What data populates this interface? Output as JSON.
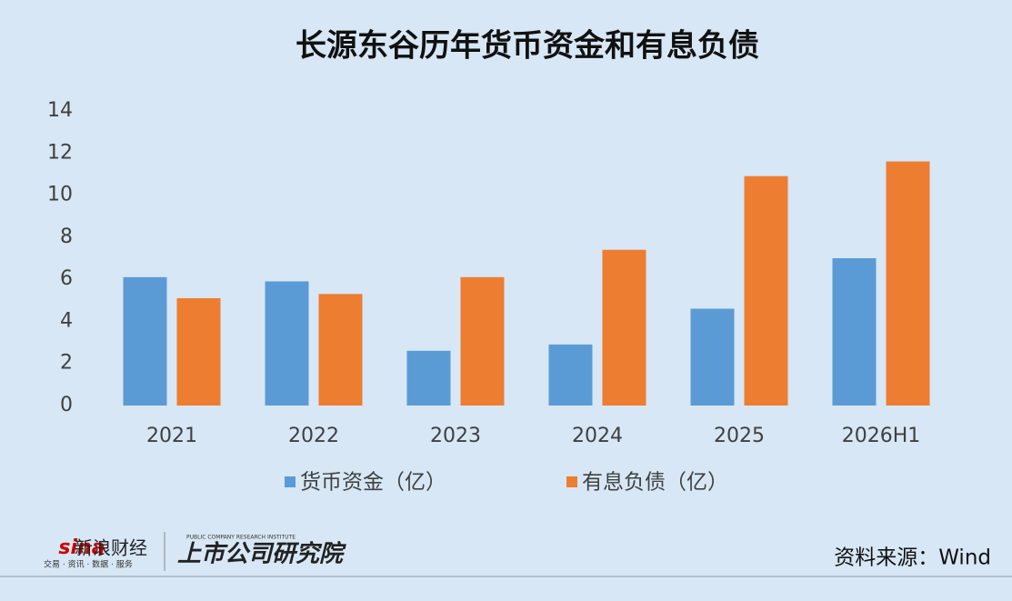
{
  "chart_data": {
    "type": "bar",
    "title": "长源东谷历年货币资金和有息负债",
    "categories": [
      "2021",
      "2022",
      "2023",
      "2024",
      "2025",
      "2026H1"
    ],
    "series": [
      {
        "name": "货币资金（亿）",
        "color": "#5b9bd5",
        "values": [
          6.1,
          5.9,
          2.6,
          2.9,
          4.6,
          7.0
        ]
      },
      {
        "name": "有息负债（亿）",
        "color": "#ed7d31",
        "values": [
          5.1,
          5.3,
          6.1,
          7.4,
          10.9,
          11.6
        ]
      }
    ],
    "ylim": [
      0,
      14
    ],
    "yticks": [
      0,
      2,
      4,
      6,
      8,
      10,
      12,
      14
    ],
    "grid": false,
    "legend": "bottom"
  },
  "footer": {
    "logo_name": "新浪财经",
    "logo_slogan": "交易 · 资讯 · 数据 · 服务",
    "institute": "上市公司研究院",
    "institute_en": "PUBLIC COMPANY RESEARCH INSTITUTE",
    "source": "资料来源：Wind"
  }
}
